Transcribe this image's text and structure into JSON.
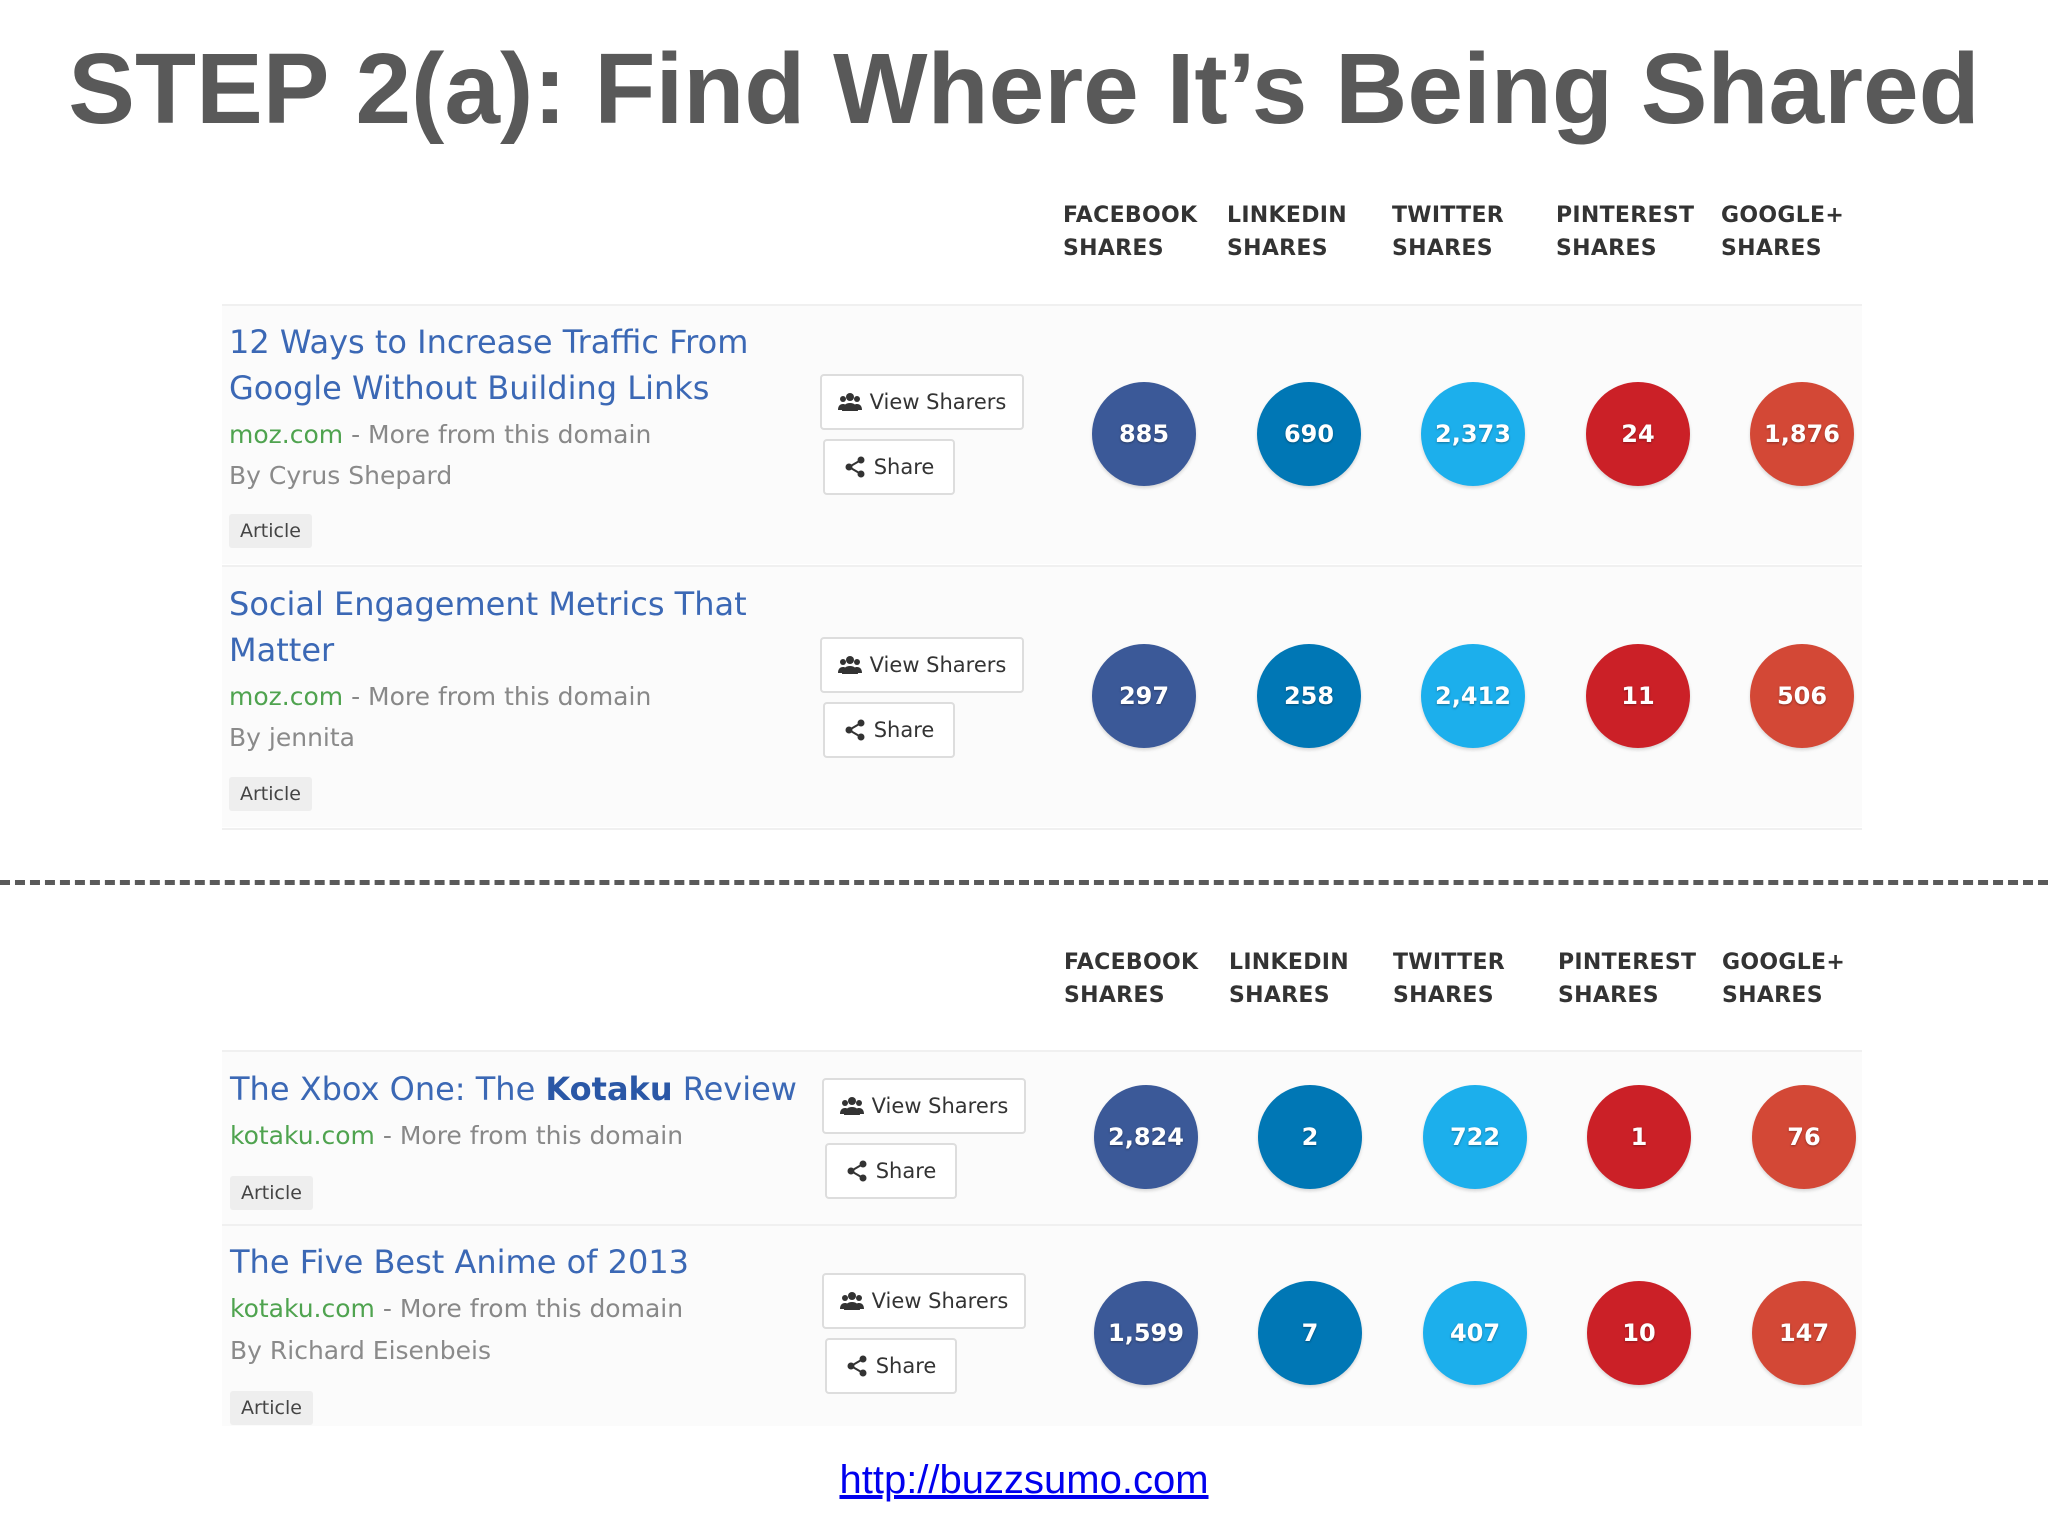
{
  "slide_title": "STEP 2(a): Find Where It’s Being Shared",
  "columns": [
    {
      "line1": "FACEBOOK",
      "line2": "SHARES"
    },
    {
      "line1": "LINKEDIN",
      "line2": "SHARES"
    },
    {
      "line1": "TWITTER",
      "line2": "SHARES"
    },
    {
      "line1": "PINTEREST",
      "line2": "SHARES"
    },
    {
      "line1": "GOOGLE+",
      "line2": "SHARES"
    }
  ],
  "colors": {
    "facebook": "#3b5998",
    "linkedin": "#0077b5",
    "twitter": "#1cafec",
    "pinterest": "#cb2027",
    "googleplus": "#d34836",
    "link": "#3b68b5",
    "domain": "#4fa34f"
  },
  "buttons": {
    "view_sharers": "View Sharers",
    "share": "Share"
  },
  "more_from_domain": "More from this domain",
  "domain_separator": " - ",
  "icons": {
    "view_sharers": "users-icon",
    "share": "share-icon"
  },
  "panels": [
    {
      "articles": [
        {
          "title_line1": "12 Ways to Increase Traffic From",
          "title_line2": "Google Without Building Links",
          "domain": "moz.com",
          "author": "By Cyrus Shepard",
          "tag": "Article",
          "shares": {
            "facebook": "885",
            "linkedin": "690",
            "twitter": "2,373",
            "pinterest": "24",
            "googleplus": "1,876"
          }
        },
        {
          "title_line1": "Social Engagement Metrics That",
          "title_line2": "Matter",
          "domain": "moz.com",
          "author": "By jennita",
          "tag": "Article",
          "shares": {
            "facebook": "297",
            "linkedin": "258",
            "twitter": "2,412",
            "pinterest": "11",
            "googleplus": "506"
          }
        }
      ]
    },
    {
      "articles": [
        {
          "title_pre": "The Xbox One: The ",
          "title_bold": "Kotaku",
          "title_post": " Review",
          "domain": "kotaku.com",
          "tag": "Article",
          "shares": {
            "facebook": "2,824",
            "linkedin": "2",
            "twitter": "722",
            "pinterest": "1",
            "googleplus": "76"
          }
        },
        {
          "title_line1": "The Five Best Anime of 2013",
          "domain": "kotaku.com",
          "author": "By Richard Eisenbeis",
          "tag": "Article",
          "shares": {
            "facebook": "1,599",
            "linkedin": "7",
            "twitter": "407",
            "pinterest": "10",
            "googleplus": "147"
          }
        }
      ]
    }
  ],
  "source_url": "http://buzzsumo.com"
}
